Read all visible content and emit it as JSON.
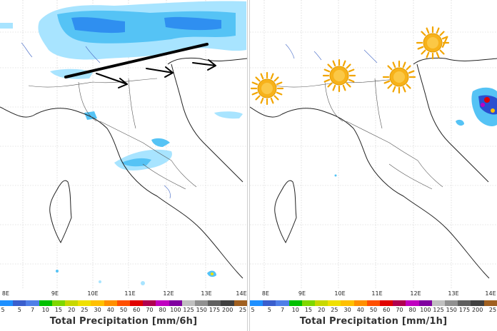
{
  "panels": [
    {
      "id": "left",
      "title": "Total Precipitation [mm/6h]",
      "longitude_ticks": [
        "8E",
        "9E",
        "10E",
        "11E",
        "12E",
        "13E",
        "14E"
      ],
      "scale_labels": [
        "5",
        "5",
        "7",
        "10",
        "15",
        "20",
        "25",
        "30",
        "40",
        "50",
        "60",
        "70",
        "80",
        "100",
        "125",
        "150",
        "175",
        "200",
        "25"
      ],
      "weather_icons": []
    },
    {
      "id": "right",
      "title": "Total Precipitation [mm/1h]",
      "longitude_ticks": [
        "8E",
        "9E",
        "10E",
        "11E",
        "12E",
        "13E",
        "14E"
      ],
      "scale_labels": [
        "5",
        "5",
        "7",
        "10",
        "15",
        "20",
        "25",
        "30",
        "40",
        "50",
        "60",
        "70",
        "80",
        "100",
        "125",
        "150",
        "175",
        "200",
        "25"
      ],
      "weather_icons": [
        "sun-icon",
        "sun-icon",
        "sun-icon",
        "sun-icon",
        "sun-icon"
      ]
    }
  ],
  "scale_colors": [
    "#1e90ff",
    "#3a5fcd",
    "#4f7fe8",
    "#00c000",
    "#7fd800",
    "#c8d800",
    "#f0e000",
    "#ffc000",
    "#ff9000",
    "#ff5000",
    "#e00000",
    "#b00050",
    "#c000c0",
    "#8000a0",
    "#c0c0c0",
    "#909090",
    "#606060",
    "#404040",
    "#a06020"
  ],
  "precip_colors": {
    "light": "#a8e4ff",
    "medium": "#55c3f5",
    "strong": "#2f8ff0",
    "heavy": "#2a4fd0"
  },
  "annotations": {
    "left_arrows": 3,
    "left_frontal_line": true
  }
}
